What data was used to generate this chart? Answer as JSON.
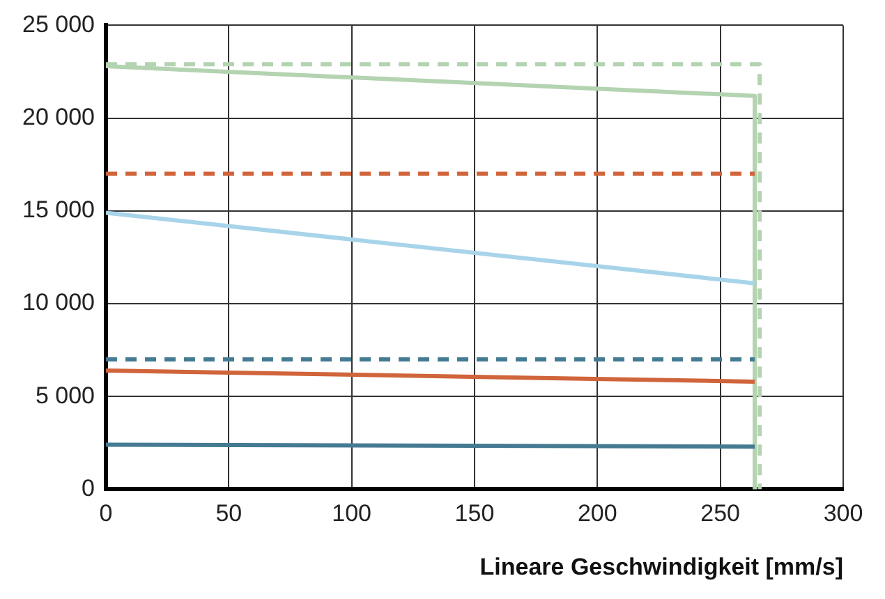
{
  "chart_data": {
    "type": "line",
    "xlabel": "Lineare Geschwindigkeit [mm/s]",
    "xlim": [
      0,
      300
    ],
    "xticks": [
      0,
      50,
      100,
      150,
      200,
      250,
      300
    ],
    "ylim": [
      0,
      25000
    ],
    "yticks": [
      {
        "value": 0,
        "label": "0"
      },
      {
        "value": 5000,
        "label": "5 000"
      },
      {
        "value": 10000,
        "label": "10 000"
      },
      {
        "value": 15000,
        "label": "15 000"
      },
      {
        "value": 20000,
        "label": "20 000"
      },
      {
        "value": 25000,
        "label": "25 000"
      }
    ],
    "grid": true,
    "legend": false,
    "marker": "none",
    "series": [
      {
        "color": "#457b92",
        "x": [
          0,
          264
        ],
        "values": [
          2400,
          2300
        ],
        "line_style": "solid"
      },
      {
        "color": "#457b92",
        "x": [
          0,
          264
        ],
        "values": [
          7000,
          7000
        ],
        "line_style": "dashed"
      },
      {
        "color": "#d0643a",
        "x": [
          0,
          264
        ],
        "values": [
          6400,
          5800
        ],
        "line_style": "solid"
      },
      {
        "color": "#d0643a",
        "x": [
          0,
          264
        ],
        "values": [
          17000,
          17000
        ],
        "line_style": "dashed"
      },
      {
        "color": "#a8d4ea",
        "x": [
          0,
          264
        ],
        "values": [
          14900,
          11100
        ],
        "line_style": "solid"
      },
      {
        "color": "#b3d3b1",
        "x": [
          0,
          264,
          264
        ],
        "values": [
          22800,
          21200,
          0
        ],
        "line_style": "solid"
      },
      {
        "color": "#b3d3b1",
        "x": [
          0,
          266,
          266
        ],
        "values": [
          22900,
          22900,
          0
        ],
        "line_style": "dashed"
      }
    ]
  }
}
